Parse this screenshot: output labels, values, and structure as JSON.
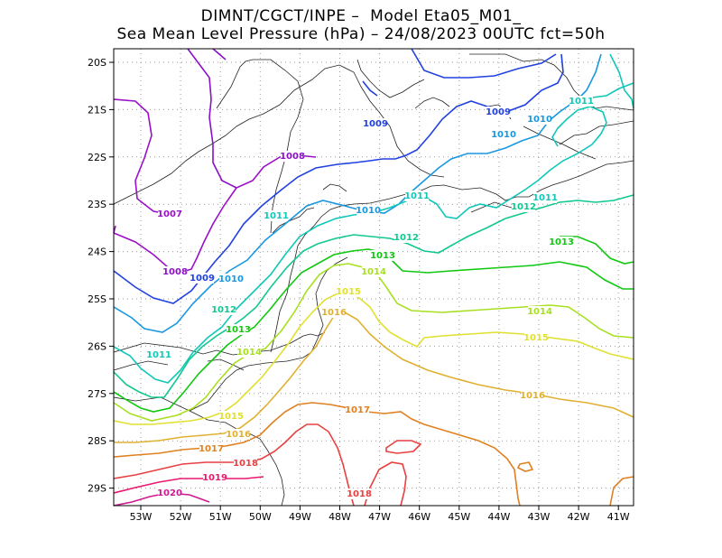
{
  "header": {
    "title_line1": "DIMNT/CGCT/INPE –  Model Eta05_M01_",
    "title_line2": "Sea Mean Level Pressure (hPa) – 24/08/2023 00UTC fct=50h"
  },
  "axes": {
    "lon_labels": [
      "53W",
      "52W",
      "51W",
      "50W",
      "49W",
      "48W",
      "47W",
      "46W",
      "45W",
      "44W",
      "43W",
      "42W",
      "41W"
    ],
    "lat_labels": [
      "20S",
      "21S",
      "22S",
      "23S",
      "24S",
      "25S",
      "26S",
      "27S",
      "28S",
      "29S"
    ]
  },
  "isobars": [
    {
      "value": "1007",
      "color": "#9a10c8"
    },
    {
      "value": "1008",
      "color": "#8a10c8"
    },
    {
      "value": "1009",
      "color": "#2040e0"
    },
    {
      "value": "1010",
      "color": "#1898e0"
    },
    {
      "value": "1011",
      "color": "#10c8b8"
    },
    {
      "value": "1012",
      "color": "#10c890"
    },
    {
      "value": "1013",
      "color": "#10c810"
    },
    {
      "value": "1014",
      "color": "#a8e020"
    },
    {
      "value": "1015",
      "color": "#e0e030"
    },
    {
      "value": "1016",
      "color": "#e0b030"
    },
    {
      "value": "1017",
      "color": "#e08020"
    },
    {
      "value": "1018",
      "color": "#e84040"
    },
    {
      "value": "1019",
      "color": "#e81870"
    },
    {
      "value": "1020",
      "color": "#d01890"
    }
  ]
}
